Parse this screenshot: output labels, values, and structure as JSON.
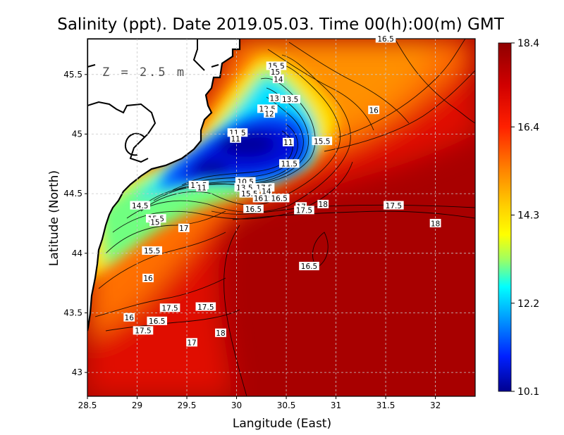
{
  "chart_data": {
    "type": "heatmap",
    "title": "Salinity (ppt). Date 2019.05.03. Time 00(h):00(m) GMT",
    "xlabel": "Langitude (East)",
    "ylabel": "Latitude (North)",
    "depth_label": "Z = 2.5 m",
    "xlim": [
      28.5,
      32.4
    ],
    "ylim": [
      42.8,
      45.8
    ],
    "x_ticks": [
      28.5,
      29,
      29.5,
      30,
      30.5,
      31,
      31.5,
      32
    ],
    "x_tick_labels": [
      "28.5",
      "29",
      "29.5",
      "30",
      "30.5",
      "31",
      "31.5",
      "32"
    ],
    "y_ticks": [
      43,
      43.5,
      44,
      44.5,
      45,
      45.5
    ],
    "y_tick_labels": [
      "43",
      "43.5",
      "44",
      "44.5",
      "45",
      "45.5"
    ],
    "grid": true,
    "colorbar": {
      "placement": "right",
      "min": 10.1,
      "max": 18.4,
      "tick_values": [
        18.4,
        16.4,
        14.3,
        12.2,
        10.1
      ],
      "tick_labels": [
        "18.4",
        "16.4",
        "14.3",
        "12.2",
        "10.1"
      ],
      "colors": [
        "#00008f",
        "#0000ff",
        "#0080ff",
        "#00ffff",
        "#80ff80",
        "#ffff00",
        "#ff8000",
        "#ff0000",
        "#b00000",
        "#8f0000"
      ]
    },
    "contour_labels": [
      {
        "text": "15.5",
        "lon": 30.4,
        "lat": 45.57
      },
      {
        "text": "15",
        "lon": 30.39,
        "lat": 45.52
      },
      {
        "text": "14",
        "lon": 30.42,
        "lat": 45.46
      },
      {
        "text": "13",
        "lon": 30.38,
        "lat": 45.3
      },
      {
        "text": "13.5",
        "lon": 30.54,
        "lat": 45.29
      },
      {
        "text": "12.5",
        "lon": 30.31,
        "lat": 45.21
      },
      {
        "text": "12",
        "lon": 30.33,
        "lat": 45.17
      },
      {
        "text": "16",
        "lon": 31.38,
        "lat": 45.2
      },
      {
        "text": "11.5",
        "lon": 30.01,
        "lat": 45.01
      },
      {
        "text": "11",
        "lon": 29.99,
        "lat": 44.96
      },
      {
        "text": "11",
        "lon": 30.52,
        "lat": 44.93
      },
      {
        "text": "15.5",
        "lon": 30.86,
        "lat": 44.94
      },
      {
        "text": "11.5",
        "lon": 30.53,
        "lat": 44.75
      },
      {
        "text": "11.5",
        "lon": 29.62,
        "lat": 44.57
      },
      {
        "text": "11",
        "lon": 29.65,
        "lat": 44.55
      },
      {
        "text": "10.5",
        "lon": 30.09,
        "lat": 44.6
      },
      {
        "text": "13.5",
        "lon": 30.08,
        "lat": 44.55
      },
      {
        "text": "17.5",
        "lon": 30.28,
        "lat": 44.55
      },
      {
        "text": "15.5",
        "lon": 30.13,
        "lat": 44.5
      },
      {
        "text": "14",
        "lon": 30.3,
        "lat": 44.52
      },
      {
        "text": "16",
        "lon": 30.22,
        "lat": 44.46
      },
      {
        "text": "15",
        "lon": 30.32,
        "lat": 44.46
      },
      {
        "text": "16.5",
        "lon": 30.43,
        "lat": 44.46
      },
      {
        "text": "16.5",
        "lon": 30.17,
        "lat": 44.37
      },
      {
        "text": "17",
        "lon": 30.65,
        "lat": 44.39
      },
      {
        "text": "17.5",
        "lon": 30.68,
        "lat": 44.36
      },
      {
        "text": "18",
        "lon": 30.87,
        "lat": 44.41
      },
      {
        "text": "17.5",
        "lon": 31.58,
        "lat": 44.4
      },
      {
        "text": "18",
        "lon": 32.0,
        "lat": 44.25
      },
      {
        "text": "14.5",
        "lon": 29.03,
        "lat": 44.4
      },
      {
        "text": "15.5",
        "lon": 29.19,
        "lat": 44.29
      },
      {
        "text": "15",
        "lon": 29.18,
        "lat": 44.26
      },
      {
        "text": "17",
        "lon": 29.47,
        "lat": 44.21
      },
      {
        "text": "15.5",
        "lon": 29.15,
        "lat": 44.02
      },
      {
        "text": "16.5",
        "lon": 30.73,
        "lat": 43.89
      },
      {
        "text": "16",
        "lon": 29.11,
        "lat": 43.79
      },
      {
        "text": "17.5",
        "lon": 29.33,
        "lat": 43.54
      },
      {
        "text": "17.5",
        "lon": 29.69,
        "lat": 43.55
      },
      {
        "text": "16",
        "lon": 28.92,
        "lat": 43.46
      },
      {
        "text": "16.5",
        "lon": 29.2,
        "lat": 43.43
      },
      {
        "text": "17.5",
        "lon": 29.06,
        "lat": 43.35
      },
      {
        "text": "18",
        "lon": 29.84,
        "lat": 43.33
      },
      {
        "text": "17",
        "lon": 29.55,
        "lat": 43.25
      },
      {
        "text": "16.5",
        "lon": 31.5,
        "lat": 45.8
      }
    ]
  }
}
